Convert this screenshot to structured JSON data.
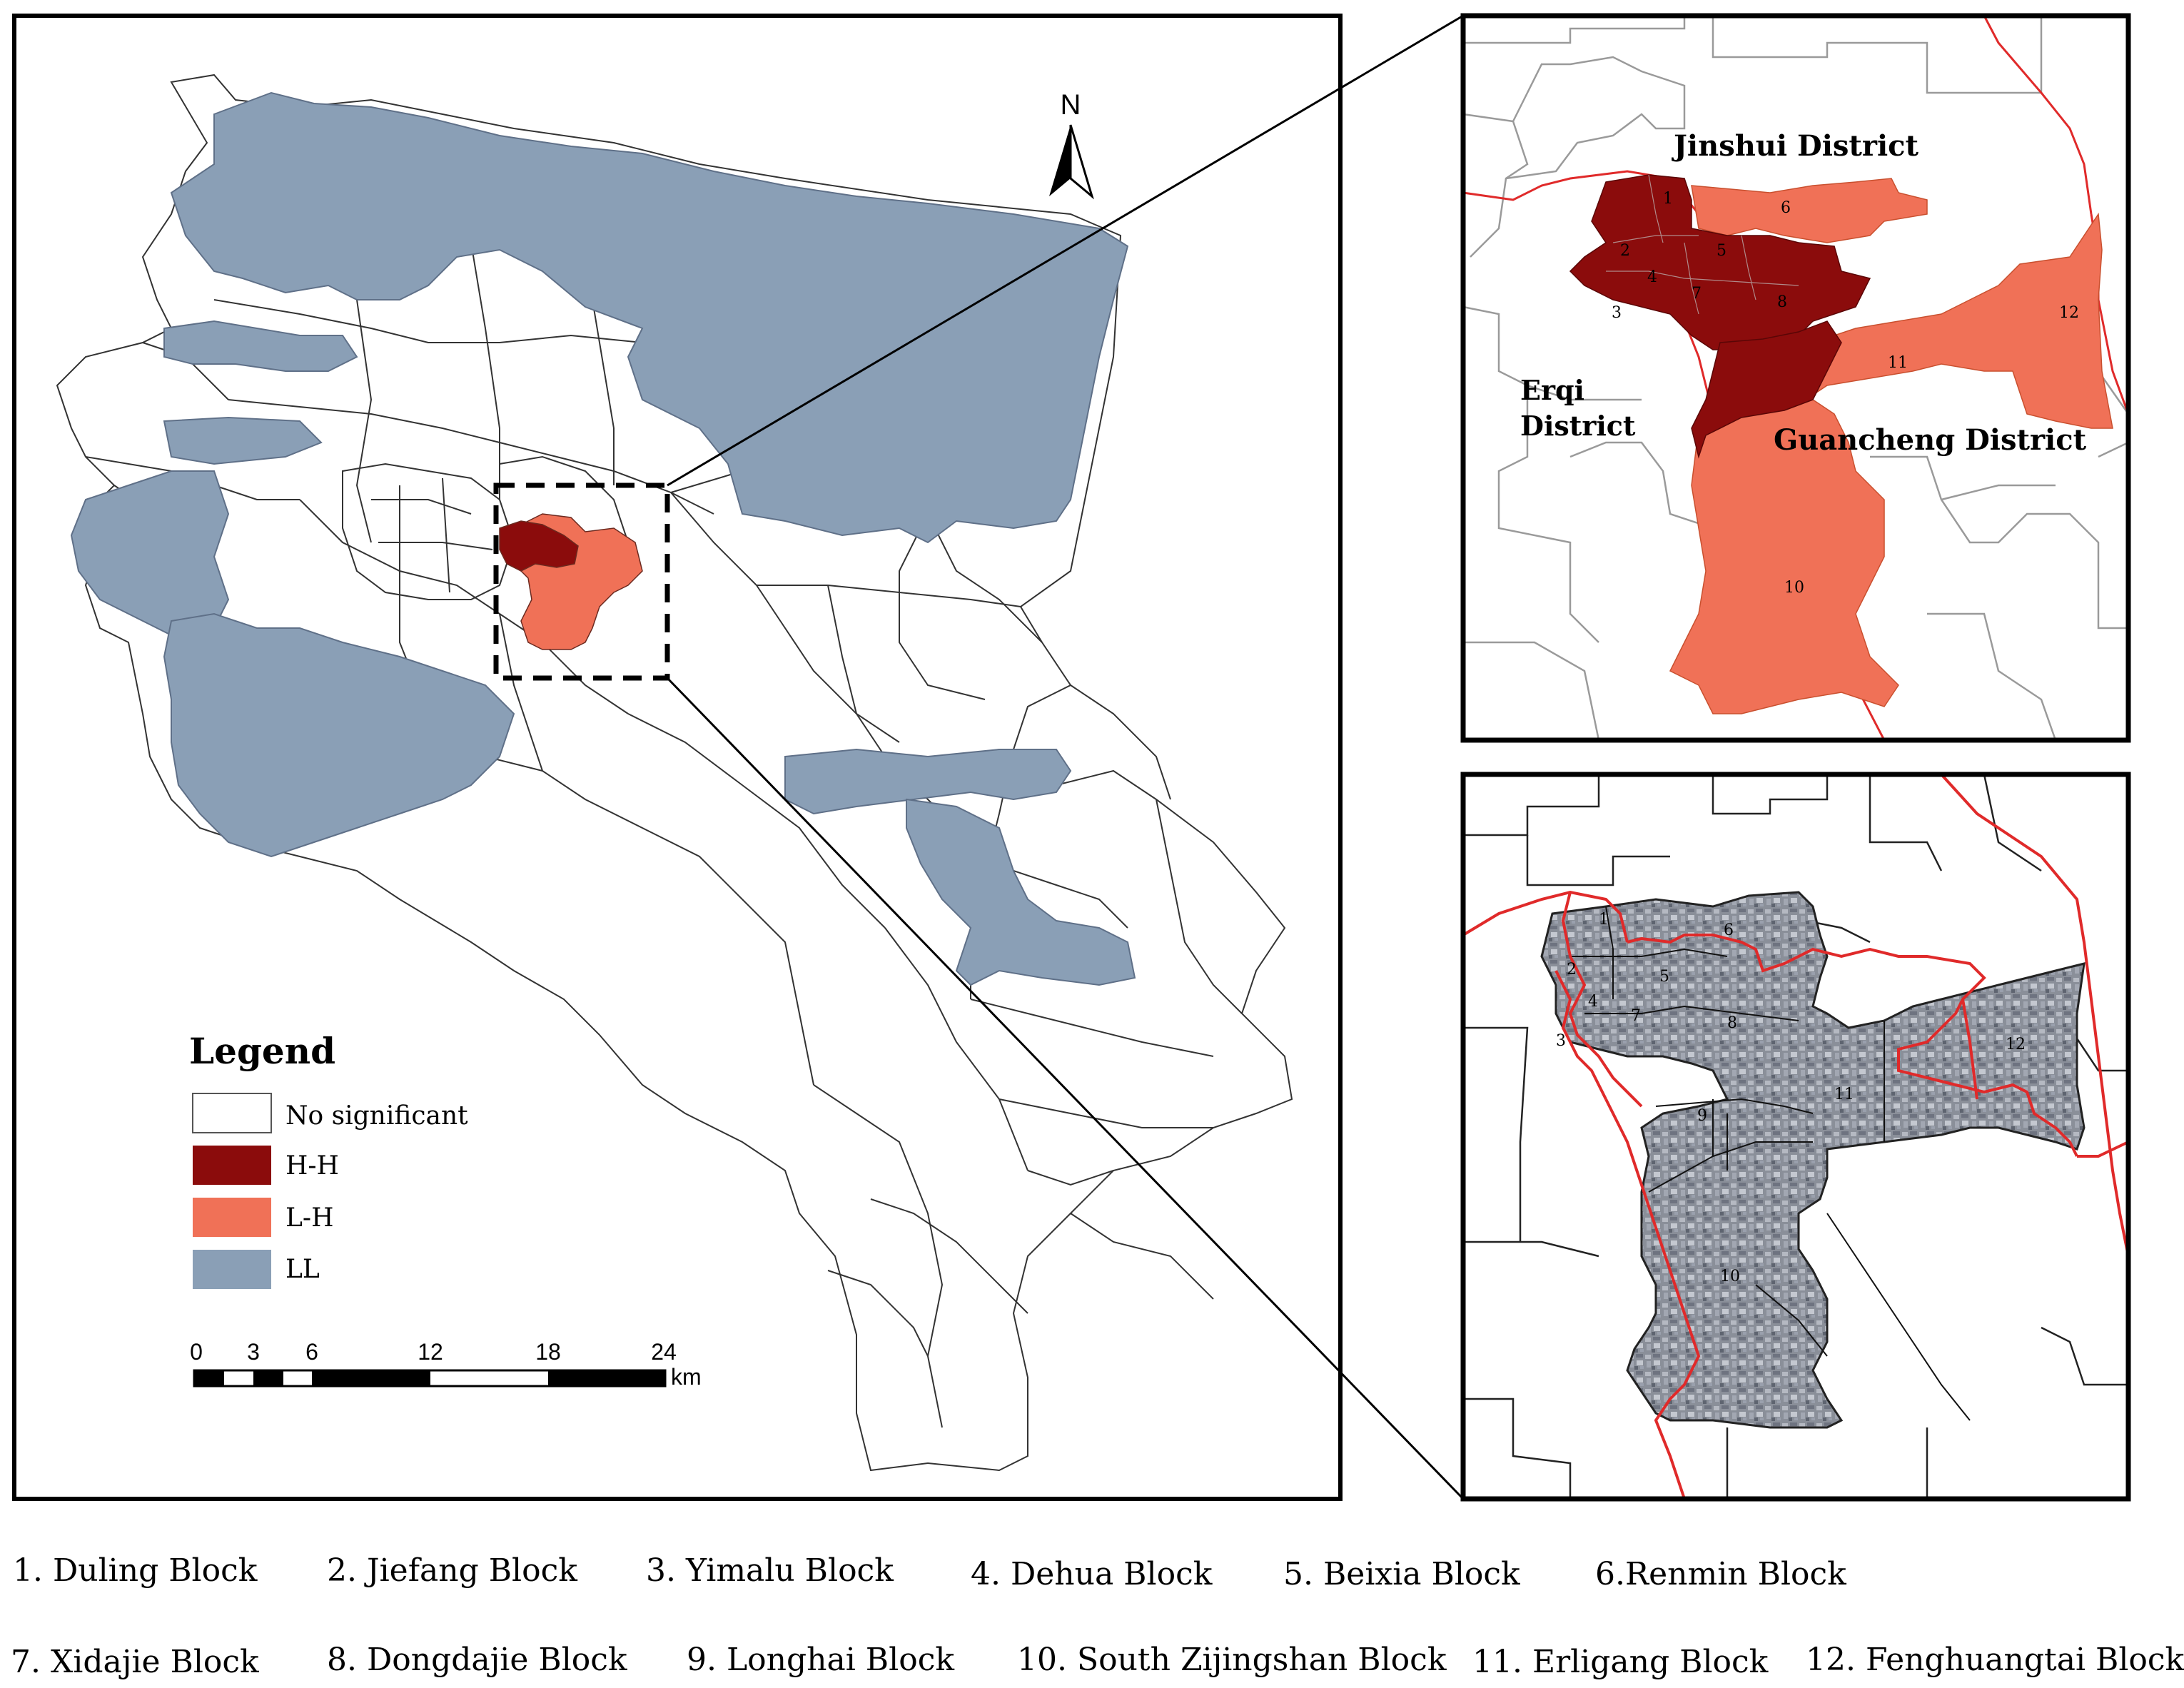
{
  "north_label": "N",
  "legend": {
    "title": "Legend",
    "items": [
      {
        "label": "No significant",
        "color": "#ffffff"
      },
      {
        "label": "H-H",
        "color": "#8b0c0c"
      },
      {
        "label": "L-H",
        "color": "#f07157"
      },
      {
        "label": "LL",
        "color": "#8a9fb6"
      }
    ]
  },
  "scale_bar": {
    "ticks": [
      "0",
      "3",
      "6",
      "12",
      "18",
      "24"
    ],
    "unit": "km"
  },
  "inset_top": {
    "districts": [
      "Jinshui District",
      "Erqi",
      "District",
      "Guancheng District"
    ]
  },
  "block_numbers": [
    "1",
    "2",
    "3",
    "4",
    "5",
    "6",
    "7",
    "8",
    "9",
    "10",
    "11",
    "12"
  ],
  "captions": [
    "1. Duling Block",
    "2. Jiefang Block",
    "3. Yimalu Block",
    "4. Dehua Block",
    "5. Beixia Block",
    "6.Renmin Block",
    "7. Xidajie Block",
    "8. Dongdajie Block",
    "9. Longhai Block",
    "10. South Zijingshan Block",
    "11. Erligang Block",
    "12. Fenghuangtai Block"
  ],
  "colors": {
    "hh": "#8b0c0c",
    "lh": "#f07157",
    "ll": "#8a9fb6",
    "boundary": "#e02a2a"
  }
}
